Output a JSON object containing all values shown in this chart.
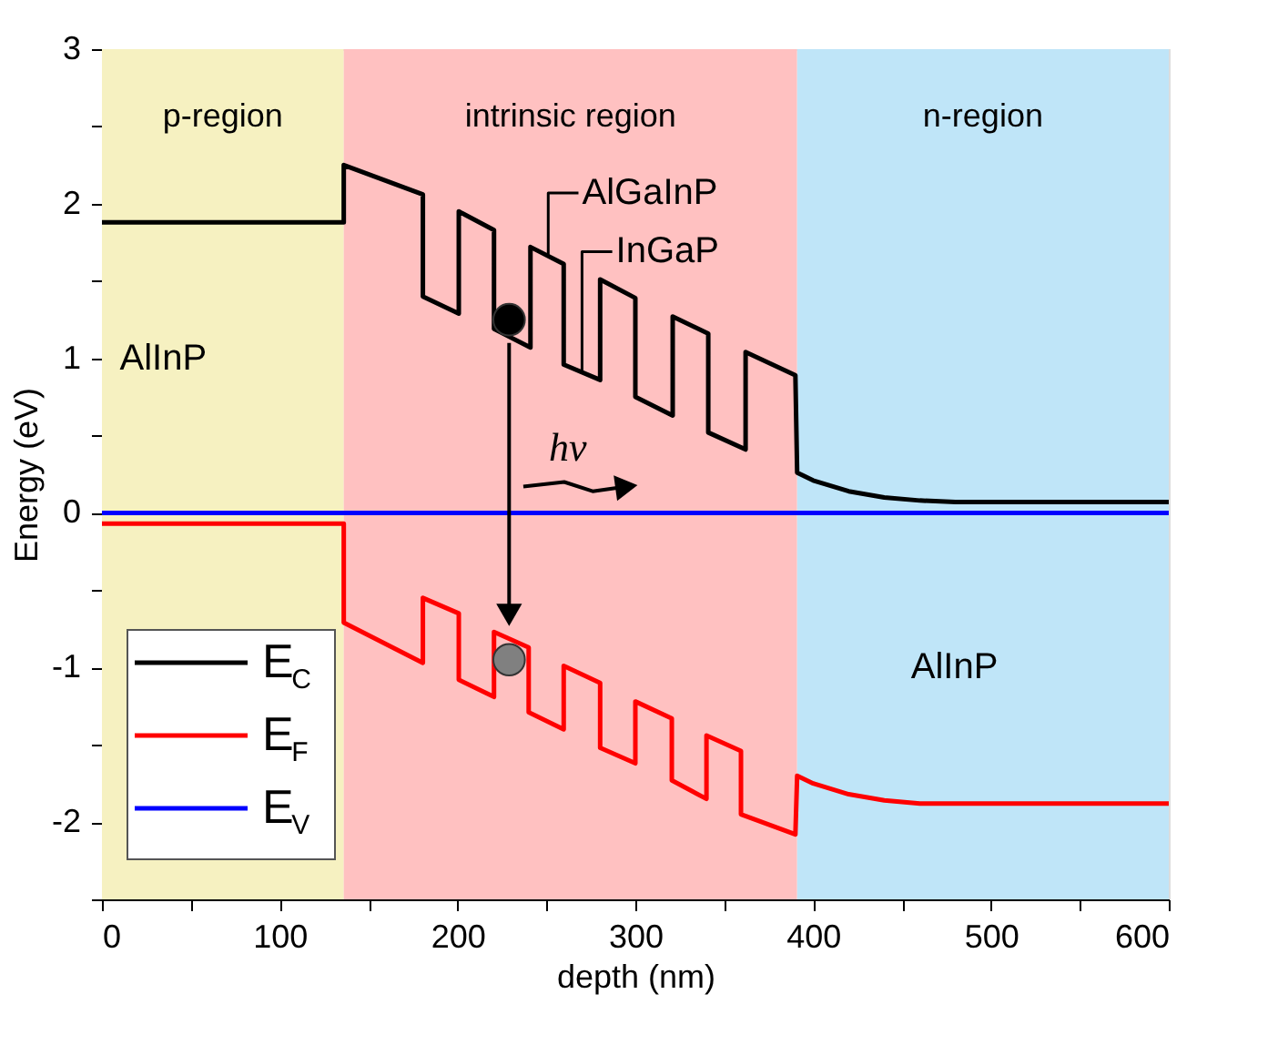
{
  "chart_data": {
    "type": "line",
    "xlabel": "depth (nm)",
    "ylabel": "Energy (eV)",
    "xlim": [
      0,
      600
    ],
    "ylim": [
      -2.5,
      3
    ],
    "xticks": [
      0,
      {
        "value": 50,
        "label": null
      },
      100,
      {
        "value": 150,
        "label": null
      },
      200,
      {
        "value": 250,
        "label": null
      },
      300,
      {
        "value": 350,
        "label": null
      },
      400,
      {
        "value": 450,
        "label": null
      },
      500,
      {
        "value": 550,
        "label": null
      },
      600
    ],
    "yticks": [
      {
        "value": -2.5,
        "label": null
      },
      -2,
      {
        "value": -1.5,
        "label": null
      },
      -1,
      {
        "value": -0.5,
        "label": null
      },
      0,
      {
        "value": 0.5,
        "label": null
      },
      1,
      {
        "value": 1.5,
        "label": null
      },
      2,
      {
        "value": 2.5,
        "label": null
      },
      3
    ],
    "grid": false,
    "legend": "bottom left",
    "line_style": "solid",
    "bands": [
      {
        "axis": "x",
        "from": 0,
        "to": 136,
        "label": "p-region",
        "color": "#f6f1c1"
      },
      {
        "axis": "x",
        "from": 136,
        "to": 391,
        "label": "intrinsic region",
        "color": "#ffc1c1"
      },
      {
        "axis": "x",
        "from": 391,
        "to": 600,
        "label": "n-region",
        "color": "#bfe5f8"
      }
    ],
    "series": [
      {
        "name": "E$_{C}$",
        "color": "#000000",
        "x": [
          0,
          136,
          136,
          180.5,
          180.5,
          200.7,
          200.7,
          220.5,
          220.5,
          241,
          241,
          259.7,
          259.7,
          280.2,
          280.2,
          300,
          300,
          321,
          321,
          341,
          341,
          362,
          362,
          390,
          391,
          400,
          420,
          440,
          460,
          480,
          520,
          600
        ],
        "values": [
          1.88,
          1.88,
          2.25,
          2.06,
          1.4,
          1.29,
          1.95,
          1.83,
          1.19,
          1.07,
          1.72,
          1.61,
          0.96,
          0.86,
          1.51,
          1.39,
          0.75,
          0.63,
          1.27,
          1.16,
          0.52,
          0.41,
          1.04,
          0.89,
          0.26,
          0.21,
          0.14,
          0.1,
          0.08,
          0.07,
          0.07,
          0.07
        ]
      },
      {
        "name": "E$_{F}$",
        "color": "#ff0000",
        "x": [
          0,
          136,
          136,
          180.5,
          180.5,
          200.7,
          200.7,
          220.5,
          220.5,
          240,
          240,
          259.7,
          259.7,
          280.2,
          280.2,
          300,
          300,
          320.5,
          320.5,
          340,
          340,
          359.4,
          359.4,
          390,
          391,
          400,
          420,
          440,
          460,
          480,
          520,
          600
        ],
        "values": [
          -0.07,
          -0.07,
          -0.71,
          -0.97,
          -0.55,
          -0.65,
          -1.08,
          -1.19,
          -0.77,
          -0.87,
          -1.29,
          -1.4,
          -0.99,
          -1.1,
          -1.52,
          -1.62,
          -1.22,
          -1.33,
          -1.73,
          -1.85,
          -1.44,
          -1.54,
          -1.95,
          -2.08,
          -1.7,
          -1.75,
          -1.82,
          -1.86,
          -1.88,
          -1.88,
          -1.88,
          -1.88
        ]
      },
      {
        "name": "E$_{V}$",
        "color": "#0000ff",
        "x": [
          0,
          600
        ],
        "values": [
          0,
          0
        ]
      },
      {
        "type": "scatter",
        "marker": "circle",
        "colors": [
          "#000000",
          "#808080"
        ],
        "x": [
          229,
          229
        ],
        "values": [
          1.25,
          -0.95
        ]
      }
    ],
    "annotations": [
      "AlInP",
      "AlInP",
      {
        "text": "AlGaInP",
        "x": 251,
        "y": 1.67
      },
      {
        "text": "InGaP",
        "x": 270,
        "y": 0.92
      },
      "hv"
    ]
  }
}
